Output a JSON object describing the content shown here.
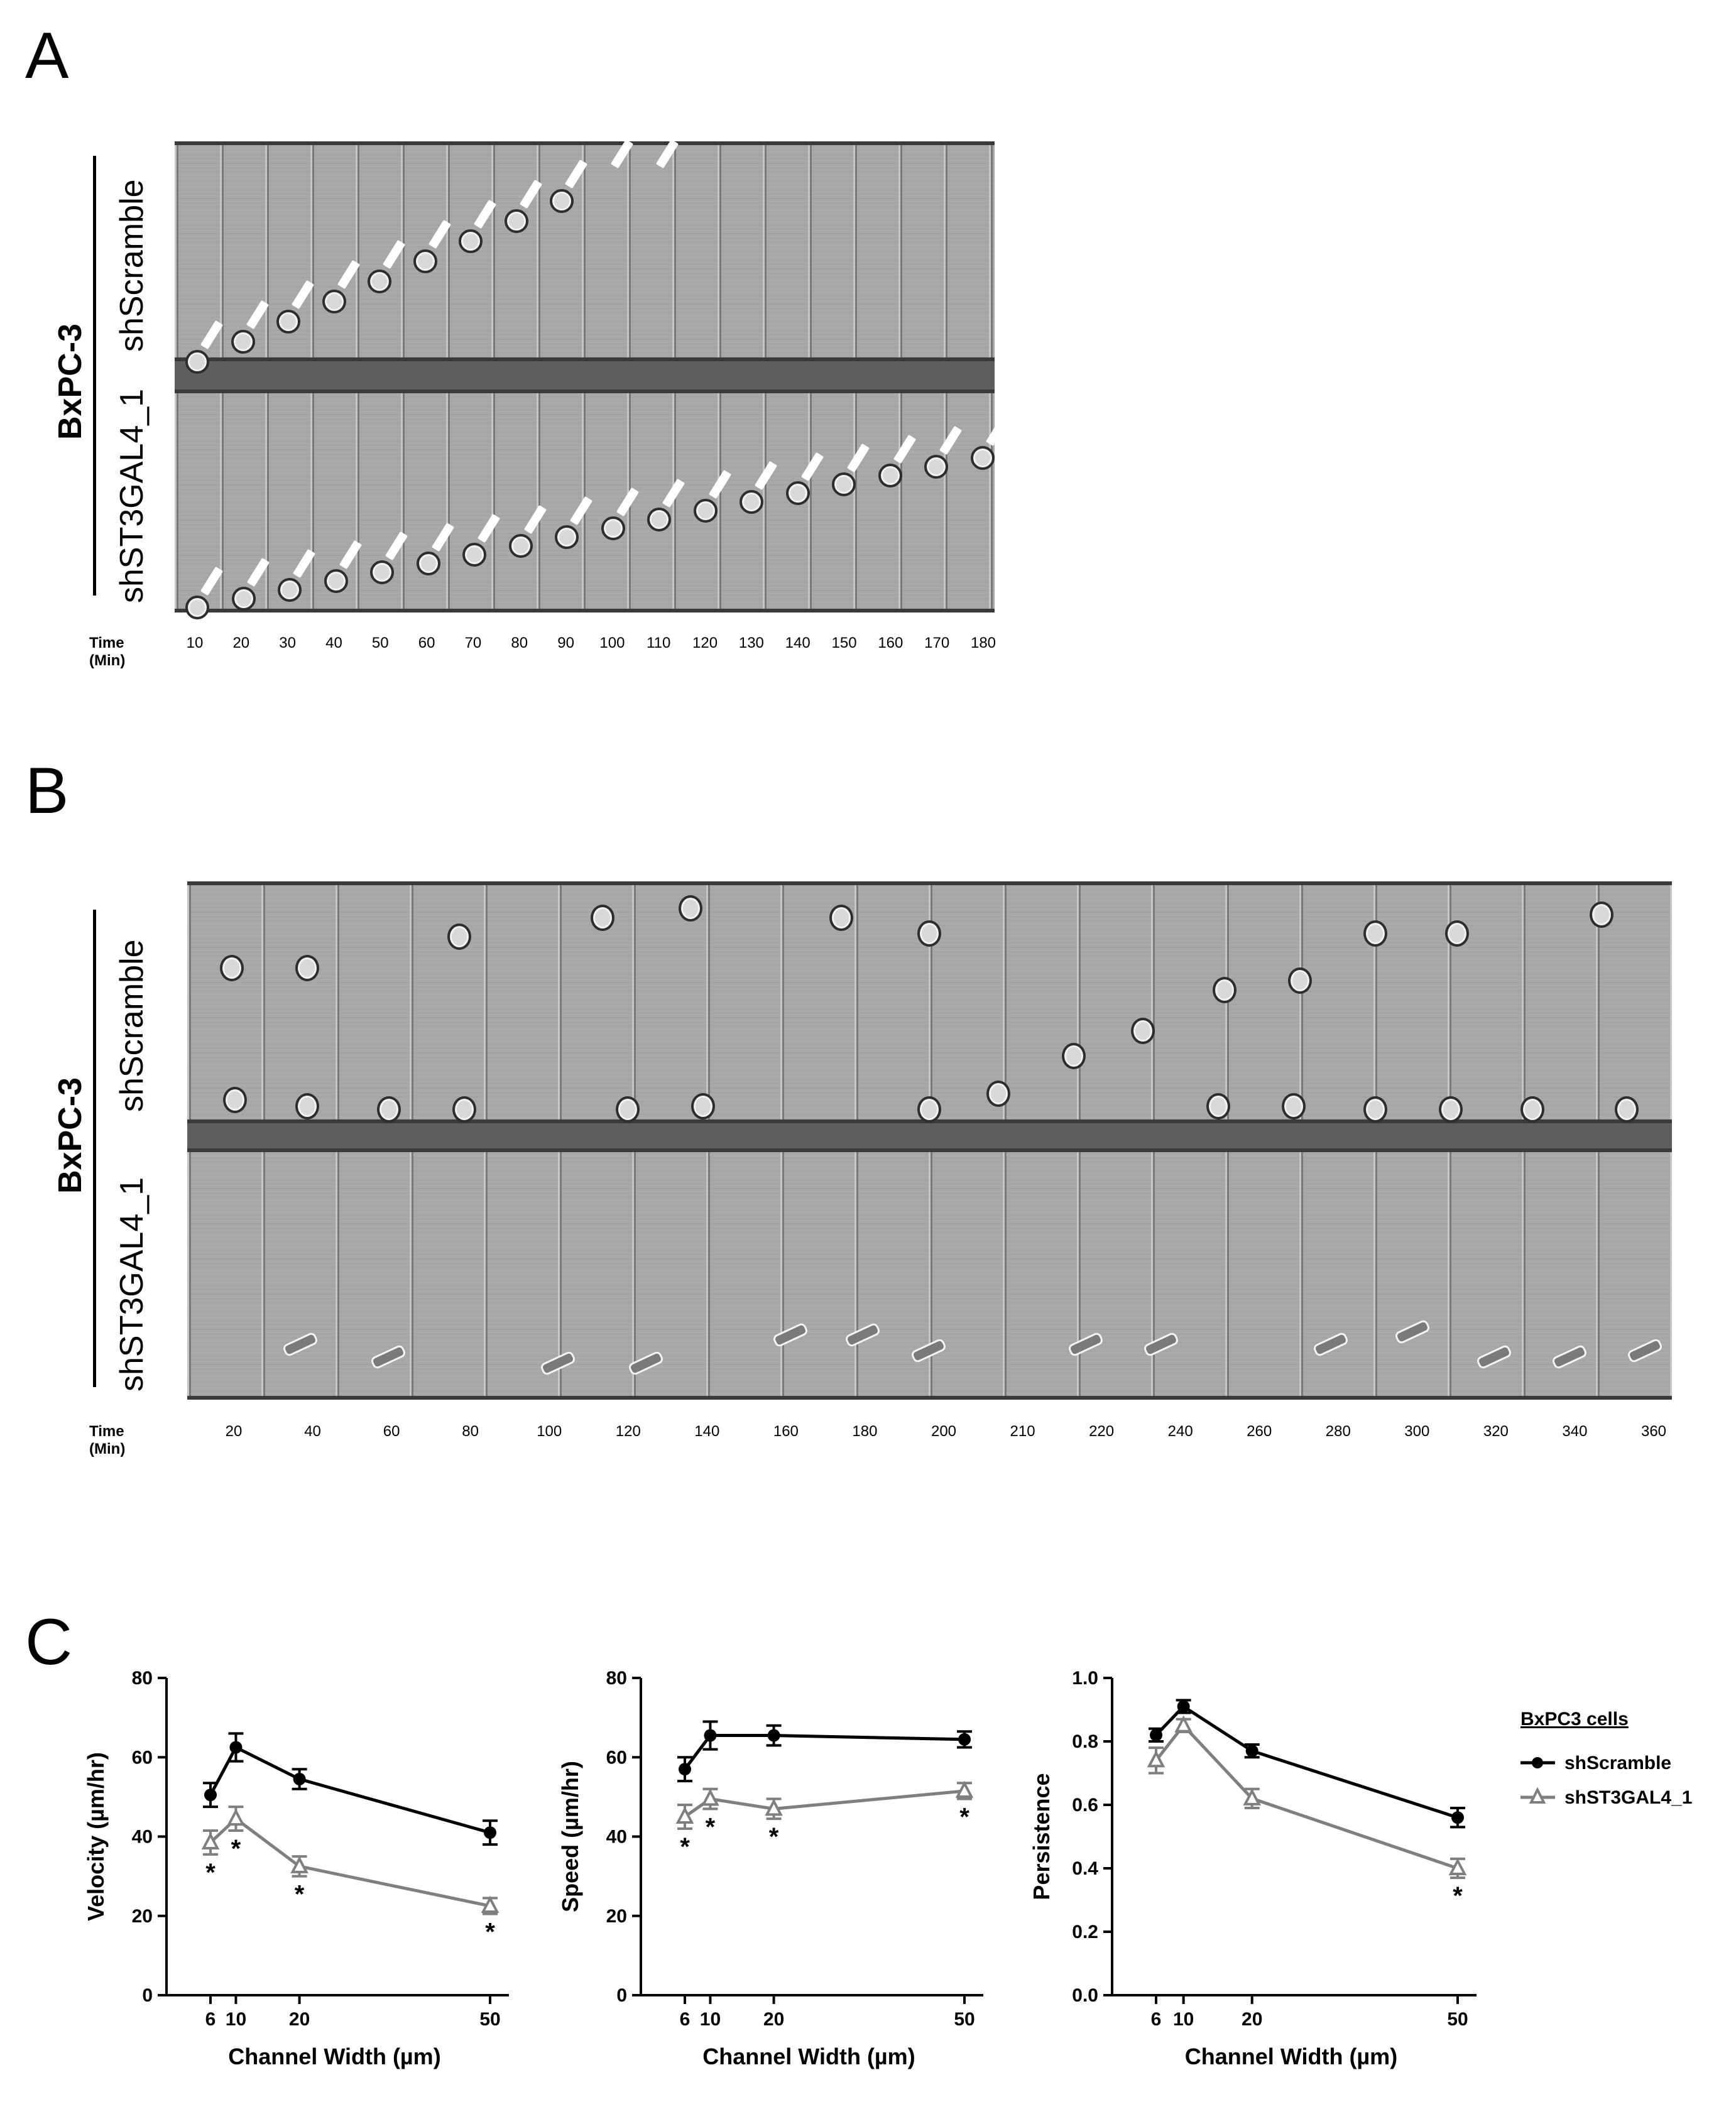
{
  "panels": {
    "a": "A",
    "b": "B",
    "c": "C"
  },
  "panel_a": {
    "cell_line": "BxPC-3",
    "rows": [
      "shScramble",
      "shST3GAL4_1"
    ],
    "time_label": "Time (Min)",
    "times": [
      "10",
      "20",
      "30",
      "40",
      "50",
      "60",
      "70",
      "80",
      "90",
      "100",
      "110",
      "120",
      "130",
      "140",
      "150",
      "160",
      "170",
      "180"
    ]
  },
  "panel_b": {
    "cell_line": "BxPC-3",
    "rows": [
      "shScramble",
      "shST3GAL4_1"
    ],
    "time_label": "Time (Min)",
    "times": [
      "20",
      "40",
      "60",
      "80",
      "100",
      "120",
      "140",
      "160",
      "180",
      "200",
      "210",
      "220",
      "240",
      "260",
      "280",
      "300",
      "320",
      "340",
      "360"
    ]
  },
  "colors": {
    "scramble": "#000000",
    "st3gal4": "#7f7f7f"
  },
  "chart_data": [
    {
      "type": "line",
      "title": "",
      "xlabel": "Channel Width (µm)",
      "ylabel": "Velocity (µm/hr)",
      "x": [
        6,
        10,
        20,
        50
      ],
      "xticks": [
        "6",
        "10",
        "20",
        "50"
      ],
      "xlim": [
        0,
        52
      ],
      "ylim": [
        0,
        80
      ],
      "yticks": [
        "0",
        "20",
        "40",
        "60",
        "80"
      ],
      "series": [
        {
          "name": "shScramble",
          "values": [
            50.5,
            62.5,
            54.5,
            41
          ],
          "errors": [
            3,
            3.5,
            2.5,
            3
          ]
        },
        {
          "name": "shST3GAL4_1",
          "values": [
            38.5,
            44.5,
            32.5,
            22.5
          ],
          "errors": [
            3,
            3,
            2.5,
            2
          ]
        }
      ],
      "significance": [
        "*",
        "*",
        "*",
        "*"
      ]
    },
    {
      "type": "line",
      "title": "",
      "xlabel": "Channel Width (µm)",
      "ylabel": "Speed (µm/hr)",
      "x": [
        6,
        10,
        20,
        50
      ],
      "xticks": [
        "6",
        "10",
        "20",
        "50"
      ],
      "xlim": [
        0,
        52
      ],
      "ylim": [
        0,
        80
      ],
      "yticks": [
        "0",
        "20",
        "40",
        "60",
        "80"
      ],
      "series": [
        {
          "name": "shScramble",
          "values": [
            57,
            65.5,
            65.5,
            64.5
          ],
          "errors": [
            3,
            3.5,
            2.5,
            2
          ]
        },
        {
          "name": "shST3GAL4_1",
          "values": [
            45,
            49.5,
            47,
            51.5
          ],
          "errors": [
            3,
            2.5,
            2.5,
            2
          ]
        }
      ],
      "significance": [
        "*",
        "*",
        "*",
        "*"
      ]
    },
    {
      "type": "line",
      "title": "",
      "xlabel": "Channel Width (µm)",
      "ylabel": "Persistence",
      "x": [
        6,
        10,
        20,
        50
      ],
      "xticks": [
        "6",
        "10",
        "20",
        "50"
      ],
      "xlim": [
        0,
        52
      ],
      "ylim": [
        0,
        1.0
      ],
      "yticks": [
        "0.0",
        "0.2",
        "0.4",
        "0.6",
        "0.8",
        "1.0"
      ],
      "series": [
        {
          "name": "shScramble",
          "values": [
            0.82,
            0.91,
            0.77,
            0.56
          ],
          "errors": [
            0.02,
            0.02,
            0.02,
            0.03
          ]
        },
        {
          "name": "shST3GAL4_1",
          "values": [
            0.74,
            0.85,
            0.62,
            0.4
          ],
          "errors": [
            0.04,
            0.02,
            0.03,
            0.03
          ]
        }
      ],
      "significance": [
        "",
        "",
        "",
        "*"
      ]
    }
  ],
  "legend": {
    "title": "BxPC3 cells",
    "items": [
      {
        "label": "shScramble",
        "marker": "circle"
      },
      {
        "label": "shST3GAL4_1",
        "marker": "triangle"
      }
    ]
  }
}
